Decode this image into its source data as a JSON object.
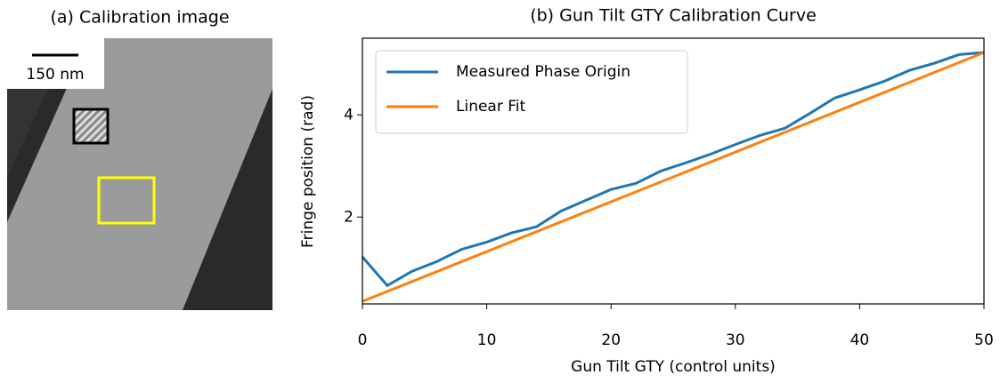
{
  "image_panel": {
    "title": "(a) Calibration image",
    "scale_bar": "150 nm"
  },
  "chart_data": {
    "type": "line",
    "title": "(b) Gun Tilt GTY Calibration Curve",
    "x_label": "Gun Tilt GTY (control units)",
    "y_label": "Fringe position (rad)",
    "xlim": [
      0,
      50
    ],
    "ylim": [
      0.3,
      5.5
    ],
    "xticks": [
      0,
      10,
      20,
      30,
      40,
      50
    ],
    "yticks": [
      2,
      4
    ],
    "legend": "upper left",
    "series": [
      {
        "name": "Measured Phase Origin",
        "color": "#1f77b4",
        "x": [
          0,
          2,
          4,
          6,
          8,
          10,
          12,
          14,
          16,
          18,
          20,
          22,
          24,
          26,
          28,
          30,
          32,
          34,
          36,
          38,
          40,
          42,
          44,
          46,
          48,
          50
        ],
        "values": [
          1.22,
          0.66,
          0.94,
          1.13,
          1.37,
          1.51,
          1.69,
          1.81,
          2.12,
          2.33,
          2.54,
          2.66,
          2.9,
          3.06,
          3.23,
          3.42,
          3.6,
          3.74,
          4.03,
          4.33,
          4.49,
          4.66,
          4.87,
          5.01,
          5.18,
          5.22
        ]
      },
      {
        "name": "Linear Fit",
        "color": "#ff7f0e",
        "x": [
          0,
          50
        ],
        "values": [
          0.35,
          5.22
        ]
      }
    ]
  }
}
